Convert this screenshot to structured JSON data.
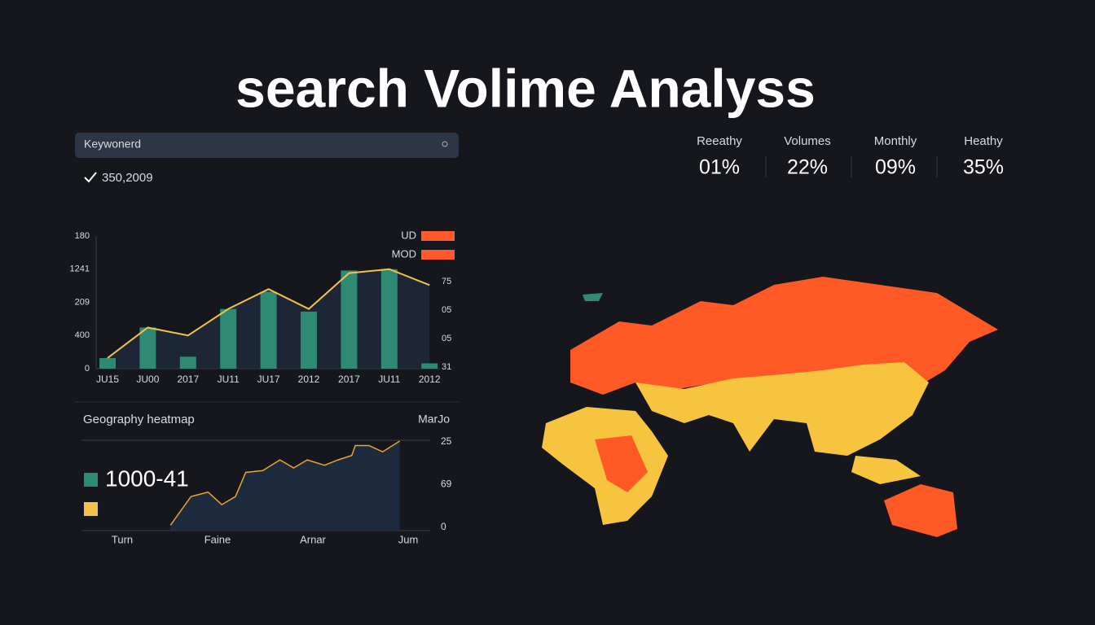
{
  "header": {
    "title": "search Volime Analyss"
  },
  "search": {
    "placeholder": "Keywonerd",
    "result": "350,2009"
  },
  "stats": [
    {
      "label": "Reeathy",
      "value": "01%"
    },
    {
      "label": "Volumes",
      "value": "22%"
    },
    {
      "label": "Monthly",
      "value": "09%"
    },
    {
      "label": "Heathy",
      "value": "35%"
    }
  ],
  "chart_data": [
    {
      "type": "bar-line",
      "categories": [
        "JU15",
        "JU00",
        "2017",
        "JU11",
        "JU17",
        "2012",
        "2017",
        "JU11",
        "2012"
      ],
      "series": [
        {
          "name": "UD",
          "color": "#2e8a72",
          "values": [
            8,
            31,
            9,
            45,
            58,
            43,
            74,
            75,
            4
          ]
        },
        {
          "name": "MOD",
          "color": "#f3c24a",
          "values": [
            8,
            31,
            25,
            45,
            60,
            45,
            72,
            75,
            63
          ]
        }
      ],
      "legend_color": "#ff5a2c",
      "ylim": [
        0,
        100
      ],
      "y_labels": [
        "0",
        "400",
        "209",
        "1241",
        "180"
      ],
      "y2_labels": [
        "31",
        "05",
        "05",
        "75"
      ]
    },
    {
      "type": "area",
      "title": "Geography heatmap",
      "legend_title": "MarJo",
      "legend": [
        {
          "name": "1000-41",
          "color": "#2e8a72"
        },
        {
          "name": null,
          "color": "#f3c24a"
        }
      ],
      "x": [
        26,
        32,
        37,
        41,
        45,
        48,
        53,
        58,
        62,
        66,
        71,
        75,
        79,
        80,
        84,
        88,
        93
      ],
      "values": [
        6,
        38,
        43,
        29,
        38,
        65,
        67,
        79,
        70,
        79,
        73,
        79,
        84,
        95,
        95,
        88,
        100
      ],
      "color": "#e8a436",
      "xlim": [
        0,
        100
      ],
      "ylim": [
        0,
        100
      ],
      "x_labels": [
        "Turn",
        "Faine",
        "Arnar",
        "Jum"
      ],
      "y2_labels": [
        "0",
        "69",
        "25"
      ]
    }
  ]
}
